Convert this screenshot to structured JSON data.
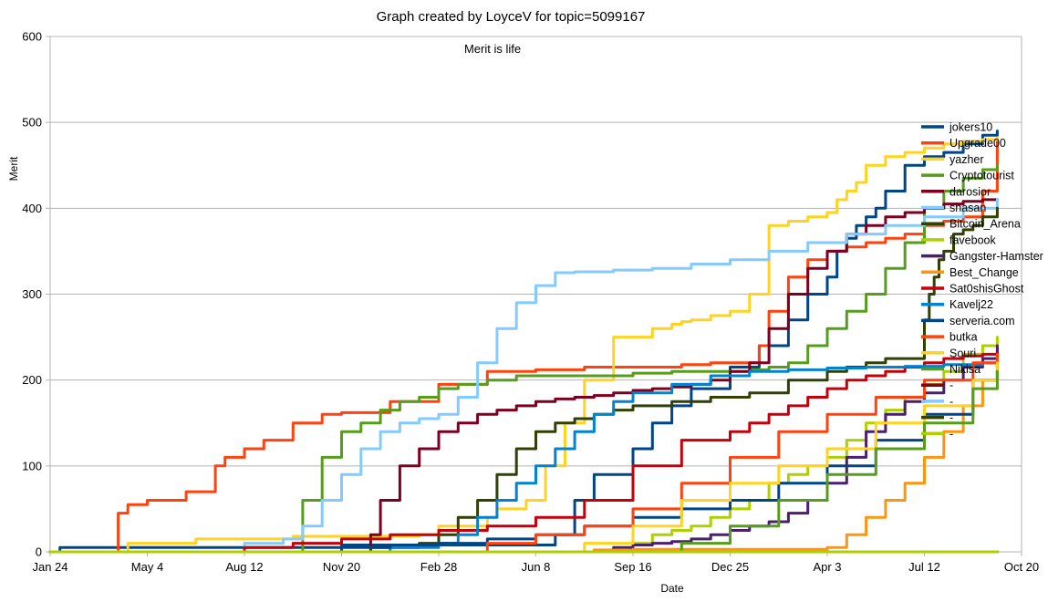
{
  "chart_data": {
    "type": "line",
    "title": "Graph created by LoyceV for topic=5099167",
    "subtitle": "Merit is life",
    "xlabel": "Date",
    "ylabel": "Merit",
    "ylim": [
      0,
      600
    ],
    "y_ticks": [
      "0",
      "100",
      "200",
      "300",
      "400",
      "500",
      "600"
    ],
    "x_ticks": [
      "Jan 24",
      "May 4",
      "Aug 12",
      "Nov 20",
      "Feb 28",
      "Jun 8",
      "Sep 16",
      "Dec 25",
      "Apr 3",
      "Jul 12",
      "Oct 20"
    ],
    "xlim_days": [
      0,
      1000
    ],
    "grid": true,
    "legend_position": "right",
    "series": [
      {
        "name": "jokers10",
        "color": "#004586",
        "x": [
          0,
          10,
          150,
          300,
          400,
          520,
          540,
          560,
          600,
          620,
          640,
          660,
          700,
          730,
          760,
          780,
          800,
          810,
          820,
          830,
          840,
          850,
          860,
          880,
          900,
          920,
          940,
          960,
          975
        ],
        "y": [
          0,
          5,
          5,
          8,
          8,
          20,
          60,
          90,
          120,
          150,
          170,
          190,
          215,
          240,
          270,
          300,
          320,
          350,
          365,
          380,
          390,
          400,
          420,
          450,
          460,
          465,
          475,
          485,
          490
        ]
      },
      {
        "name": "Upgrade00",
        "color": "#ff420e",
        "x": [
          0,
          60,
          70,
          80,
          100,
          140,
          170,
          180,
          200,
          220,
          250,
          280,
          300,
          350,
          400,
          450,
          500,
          550,
          600,
          650,
          680,
          700,
          720,
          730,
          740,
          760,
          780,
          800,
          820,
          840,
          860,
          880,
          900,
          920,
          940,
          960,
          975
        ],
        "y": [
          0,
          0,
          45,
          55,
          60,
          70,
          100,
          110,
          120,
          130,
          150,
          160,
          162,
          175,
          195,
          210,
          212,
          215,
          215,
          218,
          220,
          220,
          220,
          240,
          280,
          320,
          340,
          350,
          355,
          360,
          365,
          370,
          380,
          385,
          390,
          420,
          480
        ]
      },
      {
        "name": "yazher",
        "color": "#ffd320",
        "x": [
          0,
          80,
          150,
          250,
          380,
          400,
          450,
          460,
          490,
          510,
          530,
          550,
          580,
          620,
          640,
          650,
          660,
          680,
          700,
          720,
          740,
          760,
          780,
          800,
          810,
          820,
          830,
          840,
          860,
          880,
          900,
          920,
          940,
          960,
          975
        ],
        "y": [
          0,
          10,
          15,
          18,
          20,
          30,
          40,
          50,
          60,
          100,
          150,
          200,
          250,
          260,
          265,
          268,
          270,
          275,
          280,
          300,
          380,
          385,
          390,
          395,
          410,
          420,
          430,
          450,
          460,
          465,
          470,
          475,
          478,
          480,
          482
        ]
      },
      {
        "name": "Cryptotourist",
        "color": "#579d1c",
        "x": [
          0,
          240,
          260,
          280,
          300,
          320,
          340,
          360,
          380,
          400,
          420,
          450,
          480,
          520,
          560,
          600,
          640,
          680,
          720,
          740,
          760,
          780,
          800,
          820,
          840,
          860,
          880,
          900,
          920,
          940,
          960,
          975
        ],
        "y": [
          0,
          0,
          60,
          110,
          140,
          150,
          165,
          175,
          180,
          190,
          195,
          200,
          205,
          205,
          205,
          208,
          210,
          210,
          212,
          215,
          220,
          240,
          260,
          280,
          300,
          330,
          360,
          400,
          420,
          435,
          445,
          450
        ]
      },
      {
        "name": "darosior",
        "color": "#7e0021",
        "x": [
          0,
          300,
          330,
          340,
          360,
          380,
          400,
          420,
          440,
          460,
          480,
          500,
          520,
          540,
          560,
          580,
          600,
          620,
          640,
          660,
          680,
          700,
          720,
          740,
          760,
          780,
          800,
          820,
          840,
          860,
          880,
          900,
          920,
          940,
          960,
          975
        ],
        "y": [
          0,
          0,
          20,
          60,
          100,
          120,
          140,
          150,
          160,
          165,
          170,
          175,
          178,
          180,
          182,
          185,
          188,
          190,
          192,
          195,
          200,
          210,
          220,
          260,
          300,
          330,
          350,
          370,
          380,
          390,
          395,
          400,
          405,
          408,
          410,
          410
        ]
      },
      {
        "name": "shasan",
        "color": "#83caff",
        "x": [
          0,
          200,
          240,
          260,
          280,
          300,
          320,
          340,
          360,
          380,
          400,
          420,
          440,
          460,
          480,
          500,
          520,
          540,
          580,
          620,
          660,
          700,
          740,
          780,
          820,
          860,
          900,
          940,
          975
        ],
        "y": [
          0,
          10,
          15,
          30,
          60,
          90,
          120,
          140,
          150,
          155,
          160,
          180,
          220,
          260,
          290,
          310,
          325,
          326,
          328,
          330,
          335,
          340,
          350,
          360,
          370,
          380,
          390,
          400,
          410
        ]
      },
      {
        "name": "Bitcoin_Arena",
        "color": "#314004",
        "x": [
          0,
          300,
          330,
          380,
          400,
          420,
          440,
          460,
          480,
          500,
          520,
          540,
          560,
          580,
          600,
          640,
          680,
          720,
          760,
          800,
          820,
          840,
          860,
          880,
          890,
          900,
          905,
          910,
          915,
          920,
          930,
          940,
          950,
          960,
          975
        ],
        "y": [
          0,
          0,
          5,
          10,
          20,
          40,
          60,
          90,
          120,
          140,
          150,
          155,
          160,
          165,
          170,
          175,
          180,
          185,
          200,
          210,
          215,
          220,
          225,
          225,
          225,
          270,
          300,
          320,
          340,
          350,
          370,
          375,
          380,
          390,
          400
        ]
      },
      {
        "name": "favebook",
        "color": "#aecf00",
        "x": [
          0,
          560,
          600,
          620,
          640,
          660,
          680,
          700,
          720,
          740,
          760,
          780,
          800,
          820,
          840,
          860,
          880,
          900,
          920,
          940,
          960,
          975
        ],
        "y": [
          0,
          0,
          10,
          20,
          25,
          30,
          40,
          50,
          60,
          80,
          90,
          100,
          110,
          130,
          150,
          165,
          180,
          195,
          210,
          230,
          240,
          250
        ]
      },
      {
        "name": "Gangster-Hamster",
        "color": "#4b1f6f",
        "x": [
          0,
          520,
          560,
          580,
          600,
          620,
          640,
          660,
          680,
          700,
          720,
          740,
          760,
          780,
          800,
          820,
          840,
          860,
          880,
          900,
          920,
          940,
          960,
          975
        ],
        "y": [
          0,
          0,
          2,
          5,
          8,
          10,
          12,
          15,
          20,
          25,
          30,
          35,
          45,
          60,
          80,
          110,
          140,
          160,
          175,
          185,
          200,
          215,
          225,
          240
        ]
      },
      {
        "name": "Best_Change",
        "color": "#ff950e",
        "x": [
          0,
          500,
          540,
          560,
          600,
          640,
          680,
          700,
          720,
          740,
          760,
          780,
          800,
          820,
          840,
          860,
          880,
          900,
          920,
          940,
          960,
          975
        ],
        "y": [
          0,
          0,
          0,
          2,
          3,
          3,
          3,
          3,
          3,
          3,
          3,
          3,
          5,
          20,
          40,
          60,
          80,
          110,
          140,
          170,
          200,
          230
        ]
      },
      {
        "name": "Sat0shisGhost",
        "color": "#c5000b",
        "x": [
          0,
          200,
          250,
          300,
          350,
          400,
          450,
          500,
          550,
          600,
          650,
          700,
          720,
          740,
          760,
          780,
          800,
          820,
          840,
          860,
          880,
          900,
          920,
          940,
          960,
          975
        ],
        "y": [
          0,
          5,
          10,
          15,
          20,
          25,
          30,
          40,
          60,
          100,
          130,
          140,
          150,
          160,
          170,
          180,
          190,
          200,
          205,
          210,
          215,
          220,
          225,
          228,
          230,
          232
        ]
      },
      {
        "name": "Kavelj22",
        "color": "#0084d1",
        "x": [
          0,
          300,
          350,
          400,
          420,
          440,
          460,
          480,
          500,
          520,
          540,
          560,
          580,
          600,
          640,
          680,
          720,
          760,
          800,
          840,
          880,
          920,
          960,
          975
        ],
        "y": [
          0,
          0,
          5,
          10,
          20,
          40,
          60,
          80,
          100,
          120,
          140,
          160,
          175,
          185,
          195,
          205,
          210,
          212,
          214,
          215,
          216,
          218,
          220,
          222
        ]
      },
      {
        "name": "serveria.com",
        "color": "#004586",
        "x": [
          0,
          250,
          300,
          350,
          400,
          450,
          500,
          550,
          600,
          650,
          700,
          750,
          800,
          850,
          900,
          950,
          975
        ],
        "y": [
          0,
          0,
          5,
          8,
          10,
          15,
          20,
          30,
          40,
          50,
          60,
          80,
          100,
          130,
          160,
          200,
          220
        ]
      },
      {
        "name": "butka",
        "color": "#ff420e",
        "x": [
          0,
          400,
          450,
          500,
          550,
          600,
          650,
          700,
          750,
          800,
          850,
          900,
          950,
          975
        ],
        "y": [
          0,
          0,
          10,
          20,
          30,
          50,
          80,
          110,
          140,
          160,
          180,
          200,
          220,
          230
        ]
      },
      {
        "name": "Souri",
        "color": "#ffd320",
        "x": [
          0,
          500,
          550,
          600,
          650,
          700,
          750,
          800,
          850,
          900,
          950,
          975
        ],
        "y": [
          0,
          0,
          10,
          30,
          60,
          80,
          100,
          120,
          150,
          170,
          200,
          220
        ]
      },
      {
        "name": "Nikisa",
        "color": "#579d1c",
        "x": [
          0,
          600,
          650,
          700,
          750,
          800,
          850,
          900,
          950,
          975
        ],
        "y": [
          0,
          0,
          10,
          30,
          60,
          90,
          120,
          150,
          190,
          210
        ]
      },
      {
        "name": "-",
        "color": "#7e0021",
        "x": [
          0,
          800,
          975
        ],
        "y": [
          0,
          0,
          0
        ]
      },
      {
        "name": "-",
        "color": "#83caff",
        "x": [
          0,
          800,
          975
        ],
        "y": [
          0,
          0,
          0
        ]
      },
      {
        "name": "-",
        "color": "#314004",
        "x": [
          0,
          800,
          975
        ],
        "y": [
          0,
          0,
          0
        ]
      },
      {
        "name": "-",
        "color": "#aecf00",
        "x": [
          0,
          800,
          975
        ],
        "y": [
          0,
          0,
          0
        ]
      }
    ]
  }
}
